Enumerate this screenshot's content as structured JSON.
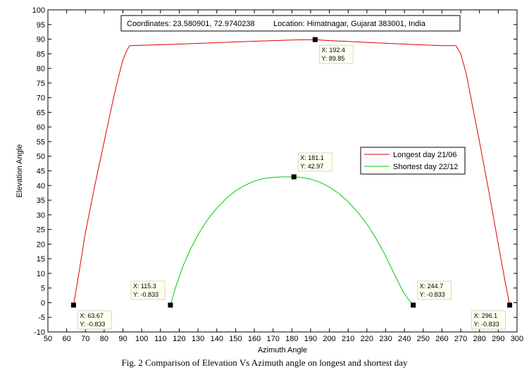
{
  "caption": "Fig. 2 Comparison of Elevation Vs Azimuth angle on longest and shortest day",
  "info": {
    "coordinates": "Coordinates: 23.580901, 72.9740238",
    "location": "Location: Himatnagar, Gujarat 383001, India"
  },
  "chart_data": {
    "type": "line",
    "title": "",
    "xlabel": "Azimuth Angle",
    "ylabel": "Elevation Angle",
    "xlim": [
      50,
      300
    ],
    "ylim": [
      -10,
      100
    ],
    "xticks": [
      50,
      60,
      70,
      80,
      90,
      100,
      110,
      120,
      130,
      140,
      150,
      160,
      170,
      180,
      190,
      200,
      210,
      220,
      230,
      240,
      250,
      260,
      270,
      280,
      290,
      300
    ],
    "yticks": [
      -10,
      -5,
      0,
      5,
      10,
      15,
      20,
      25,
      30,
      35,
      40,
      45,
      50,
      55,
      60,
      65,
      70,
      75,
      80,
      85,
      90,
      95,
      100
    ],
    "grid": false,
    "legend_position": "right",
    "series": [
      {
        "name": "Longest day 21/06",
        "color": "#dd0000",
        "x": [
          63.67,
          66,
          70,
          75,
          80,
          85,
          88,
          90,
          92,
          93.5,
          100,
          120,
          140,
          160,
          180,
          192.4,
          200,
          220,
          240,
          260,
          267.5,
          270,
          273,
          276,
          280,
          285,
          290,
          294,
          296.1
        ],
        "y": [
          -0.833,
          8,
          24,
          40,
          55,
          70,
          78,
          83,
          86,
          87.8,
          87.9,
          88.3,
          88.8,
          89.3,
          89.7,
          89.85,
          89.5,
          88.9,
          88.3,
          87.8,
          87.8,
          85,
          78,
          68,
          55,
          38,
          20,
          6,
          -0.833
        ]
      },
      {
        "name": "Shortest day 22/12",
        "color": "#00cc00",
        "x": [
          115.3,
          118,
          122,
          126,
          130,
          135,
          140,
          145,
          150,
          155,
          160,
          165,
          170,
          175,
          181.1,
          186,
          190,
          195,
          200,
          205,
          210,
          215,
          220,
          225,
          230,
          235,
          239,
          242,
          244.7
        ],
        "y": [
          -0.833,
          5.2,
          12.5,
          18.3,
          23.2,
          28.3,
          32.3,
          35.6,
          38.2,
          40.1,
          41.5,
          42.4,
          42.8,
          42.95,
          42.97,
          42.7,
          42.2,
          41.1,
          39.5,
          37.3,
          34.5,
          31.0,
          26.8,
          21.8,
          16.0,
          9.2,
          4.1,
          1.2,
          -0.833
        ]
      }
    ],
    "datatips": [
      {
        "x": 192.4,
        "y": 89.85,
        "label_x": "X: 192.4",
        "label_y": "Y: 89.85"
      },
      {
        "x": 181.1,
        "y": 42.97,
        "label_x": "X: 181.1",
        "label_y": "Y: 42.97"
      },
      {
        "x": 63.67,
        "y": -0.833,
        "label_x": "X: 63.67",
        "label_y": "Y: -0.833"
      },
      {
        "x": 115.3,
        "y": -0.833,
        "label_x": "X: 115.3",
        "label_y": "Y: -0.833"
      },
      {
        "x": 244.7,
        "y": -0.833,
        "label_x": "X: 244.7",
        "label_y": "Y: -0.833"
      },
      {
        "x": 296.1,
        "y": -0.833,
        "label_x": "X: 296.1",
        "label_y": "Y: -0.833"
      }
    ]
  }
}
